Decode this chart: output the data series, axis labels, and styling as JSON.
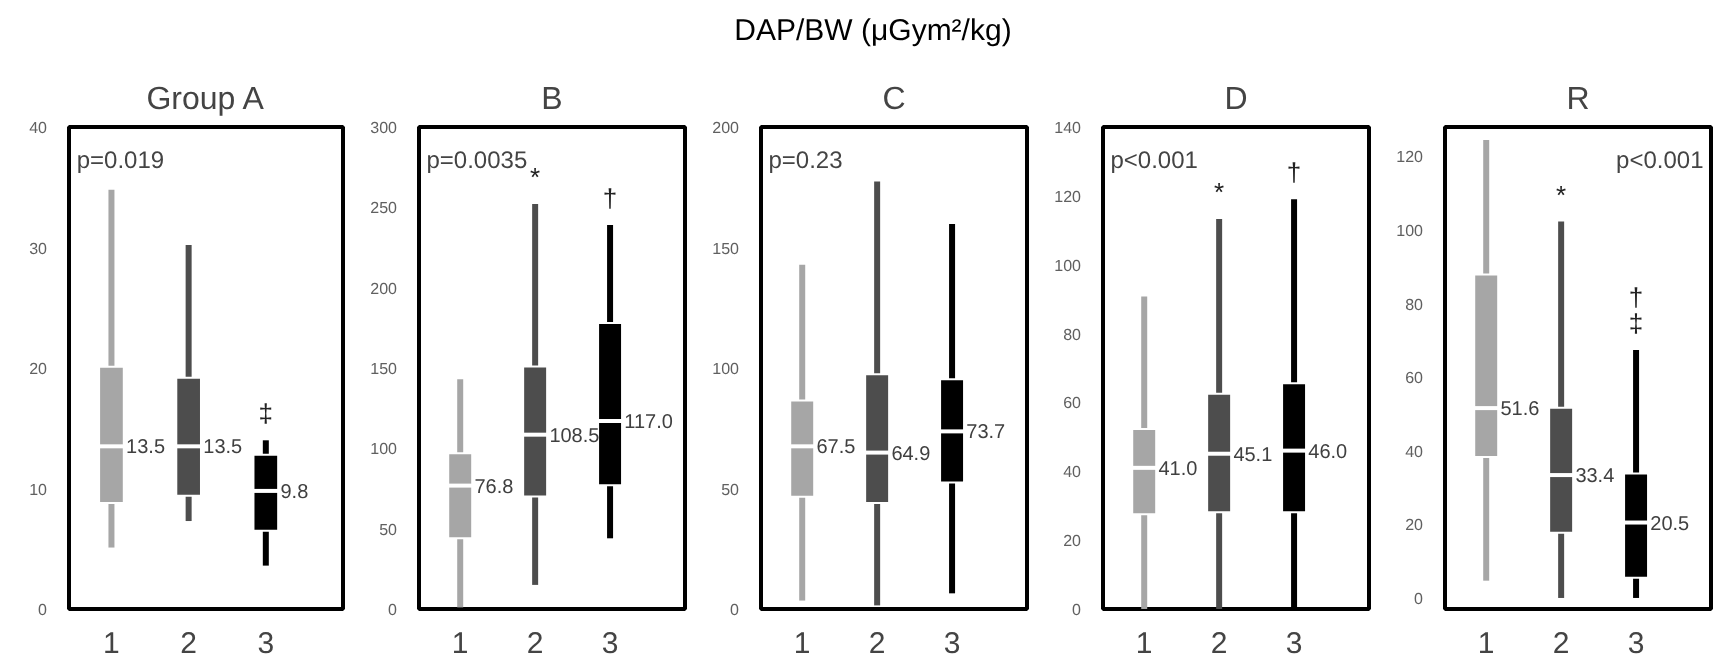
{
  "chart_data": [
    {
      "type": "box",
      "title": "Group A",
      "ylabel": "DAP/BW (μGym²/kg)",
      "categories": [
        "1",
        "2",
        "3"
      ],
      "colors": [
        "#a6a6a6",
        "#4d4d4d",
        "#000000"
      ],
      "ylim": [
        0,
        40
      ],
      "yticks": [
        0,
        10,
        20,
        30,
        40
      ],
      "value_labels": [
        "13.5",
        "13.5",
        "9.8"
      ],
      "boxes": [
        {
          "low": 5.1,
          "q1": 8.8,
          "median": 13.5,
          "q3": 20.1,
          "high": 34.8
        },
        {
          "low": 7.3,
          "q1": 9.4,
          "median": 13.5,
          "q3": 19.2,
          "high": 30.2
        },
        {
          "low": 3.6,
          "q1": 6.5,
          "median": 9.8,
          "q3": 12.8,
          "high": 14.0
        }
      ],
      "annotations": [
        "p=0.019",
        {
          "text": "‡",
          "x": "3",
          "y": 14.0
        }
      ]
    },
    {
      "type": "box",
      "title": "B",
      "categories": [
        "1",
        "2",
        "3"
      ],
      "colors": [
        "#a6a6a6",
        "#4d4d4d",
        "#000000"
      ],
      "ylim": [
        0,
        300
      ],
      "yticks": [
        0,
        50,
        100,
        150,
        200,
        250,
        300
      ],
      "value_labels": [
        "76.8",
        "108.5",
        "117.0"
      ],
      "boxes": [
        {
          "low": 1,
          "q1": 44,
          "median": 76.8,
          "q3": 97,
          "high": 143
        },
        {
          "low": 15,
          "q1": 70,
          "median": 108.5,
          "q3": 151,
          "high": 252
        },
        {
          "low": 44,
          "q1": 77,
          "median": 117.0,
          "q3": 178,
          "high": 239
        }
      ],
      "annotations": [
        "p=0.0035",
        {
          "text": "*",
          "x": "2",
          "y": 252
        },
        {
          "text": "†",
          "x": "3",
          "y": 239
        }
      ]
    },
    {
      "type": "box",
      "title": "C",
      "categories": [
        "1",
        "2",
        "3"
      ],
      "colors": [
        "#a6a6a6",
        "#4d4d4d",
        "#000000"
      ],
      "ylim": [
        0,
        200
      ],
      "yticks": [
        0,
        50,
        100,
        150,
        200
      ],
      "value_labels": [
        "67.5",
        "64.9",
        "73.7"
      ],
      "boxes": [
        {
          "low": 3.5,
          "q1": 46.6,
          "median": 67.5,
          "q3": 86.5,
          "high": 142.8
        },
        {
          "low": 1.5,
          "q1": 44,
          "median": 64.9,
          "q3": 97.4,
          "high": 177.4
        },
        {
          "low": 6.5,
          "q1": 52.5,
          "median": 73.7,
          "q3": 95.3,
          "high": 159.8
        }
      ],
      "annotations": [
        "p=0.23"
      ]
    },
    {
      "type": "box",
      "title": "D",
      "categories": [
        "1",
        "2",
        "3"
      ],
      "colors": [
        "#a6a6a6",
        "#4d4d4d",
        "#000000"
      ],
      "ylim": [
        0,
        140
      ],
      "yticks": [
        0,
        20,
        40,
        60,
        80,
        100,
        120,
        140
      ],
      "value_labels": [
        "41.0",
        "45.1",
        "46.0"
      ],
      "boxes": [
        {
          "low": 0,
          "q1": 27.5,
          "median": 41.0,
          "q3": 52.3,
          "high": 90.8
        },
        {
          "low": 0,
          "q1": 28.1,
          "median": 45.1,
          "q3": 62.5,
          "high": 113.3
        },
        {
          "low": 0,
          "q1": 28.1,
          "median": 46.0,
          "q3": 65.6,
          "high": 119
        }
      ],
      "annotations": [
        "p<0.001",
        {
          "text": "*",
          "x": "2",
          "y": 113.3
        },
        {
          "text": "†",
          "x": "3",
          "y": 119
        }
      ]
    },
    {
      "type": "box",
      "title": "R",
      "categories": [
        "1",
        "2",
        "3"
      ],
      "colors": [
        "#a6a6a6",
        "#4d4d4d",
        "#000000"
      ],
      "ylim": [
        -3,
        128
      ],
      "yticks": [
        0,
        20,
        40,
        60,
        80,
        100,
        120
      ],
      "value_labels": [
        "51.6",
        "33.4",
        "20.5"
      ],
      "boxes": [
        {
          "low": 4.7,
          "q1": 38.3,
          "median": 51.6,
          "q3": 87.9,
          "high": 124.5
        },
        {
          "low": 0,
          "q1": 17.7,
          "median": 33.4,
          "q3": 51.7,
          "high": 102.3
        },
        {
          "low": 0,
          "q1": 5.5,
          "median": 20.5,
          "q3": 33.8,
          "high": 67.4
        }
      ],
      "annotations": [
        "p<0.001",
        {
          "text": "*",
          "x": "2",
          "y": 102.3
        },
        {
          "text": "‡",
          "x": "3",
          "y": 67.4
        },
        {
          "text": "†",
          "x": "3",
          "y": 67.4
        }
      ]
    }
  ]
}
